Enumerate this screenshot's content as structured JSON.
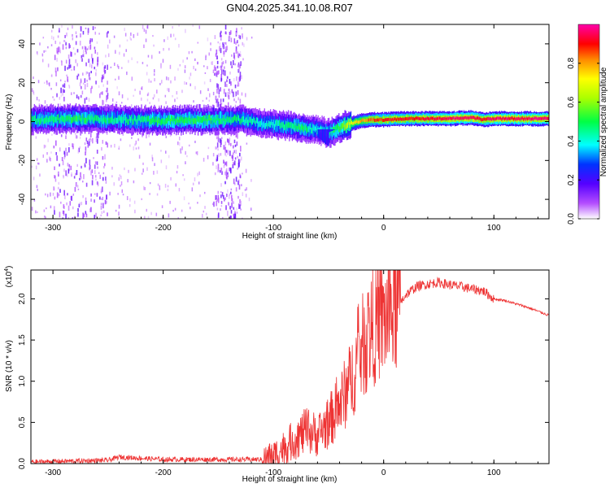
{
  "title": "GN04.2025.341.10.08.R07",
  "chart_data": [
    {
      "type": "heatmap",
      "name": "spectrogram",
      "xlabel": "Height of straight line (km)",
      "ylabel": "Frequency (Hz)",
      "xlim": [
        -320,
        150
      ],
      "ylim": [
        -50,
        50
      ],
      "xticks": [
        -300,
        -200,
        -100,
        0,
        100
      ],
      "yticks": [
        -40,
        -20,
        0,
        20,
        40
      ],
      "colorbar": {
        "label": "Normalized spectral amplitude",
        "range": [
          0.0,
          1.0
        ],
        "ticks": [
          0.0,
          0.2,
          0.4,
          0.6,
          0.8
        ],
        "colormap": "rainbow"
      },
      "ridge": {
        "x_km": [
          -320,
          -280,
          -240,
          -200,
          -160,
          -130,
          -110,
          -90,
          -75,
          -60,
          -50,
          -40,
          -30,
          -20,
          -10,
          0,
          20,
          40,
          60,
          80,
          90,
          100,
          120,
          150
        ],
        "freq_hz": [
          1,
          1.5,
          1,
          0.5,
          1,
          1,
          -1,
          -2,
          -3,
          -4,
          -6,
          -3,
          -1,
          0.5,
          1,
          1,
          1.5,
          1.5,
          1.5,
          2,
          1,
          1.5,
          1.5,
          1.5
        ],
        "amplitude": [
          0.45,
          0.5,
          0.45,
          0.5,
          0.5,
          0.45,
          0.4,
          0.45,
          0.5,
          0.4,
          0.45,
          0.55,
          0.7,
          0.8,
          0.85,
          0.9,
          0.9,
          0.92,
          0.95,
          0.95,
          0.9,
          0.95,
          0.95,
          0.95
        ]
      },
      "noise_bands_km": [
        [
          -300,
          -250
        ],
        [
          -155,
          -130
        ]
      ]
    },
    {
      "type": "line",
      "name": "snr",
      "xlabel": "Height of straight line (km)",
      "ylabel": "SNR (10 * v/v)",
      "y_multiplier": "(x10",
      "y_multiplier_exp": "4",
      "xlim": [
        -320,
        150
      ],
      "ylim": [
        0,
        2.35
      ],
      "xticks": [
        -300,
        -200,
        -100,
        0,
        100
      ],
      "yticks": [
        0.0,
        0.5,
        1.0,
        1.5,
        2.0
      ],
      "ytick_labels": [
        "0.0",
        "0.5",
        "1.0",
        "1.5",
        "2.0"
      ],
      "color": "#ee3333",
      "series": [
        {
          "name": "SNR",
          "x": [
            -320,
            -250,
            -240,
            -200,
            -150,
            -120,
            -110,
            -100,
            -90,
            -80,
            -70,
            -60,
            -50,
            -40,
            -30,
            -20,
            -10,
            0,
            10,
            20,
            30,
            40,
            50,
            60,
            70,
            80,
            90,
            100,
            110,
            120,
            130,
            140,
            150
          ],
          "y": [
            0.02,
            0.04,
            0.08,
            0.05,
            0.05,
            0.05,
            0.05,
            0.1,
            0.2,
            0.3,
            0.4,
            0.35,
            0.5,
            0.7,
            1.0,
            1.4,
            1.65,
            1.75,
            1.85,
            2.05,
            2.15,
            2.18,
            2.2,
            2.17,
            2.15,
            2.12,
            2.1,
            2.0,
            1.98,
            1.94,
            1.9,
            1.85,
            1.8
          ]
        }
      ]
    }
  ]
}
